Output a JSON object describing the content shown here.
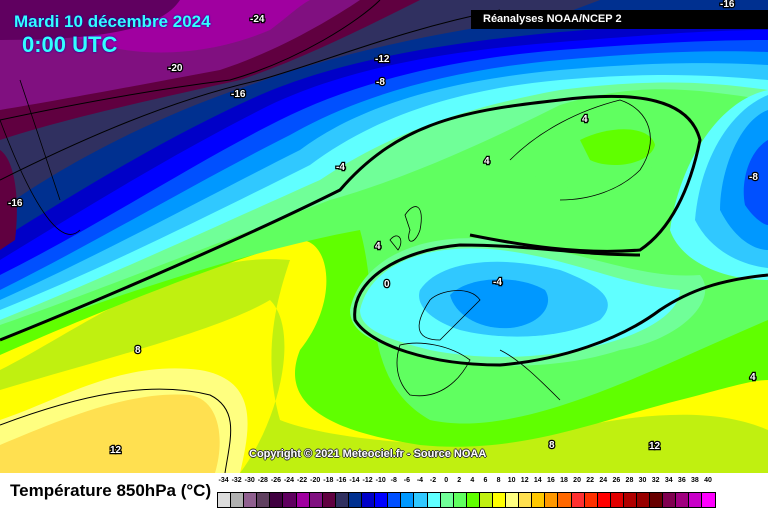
{
  "header": {
    "date": "Mardi 10 décembre 2024",
    "time": "0:00 UTC",
    "source": "Réanalyses NOAA/NCEP 2"
  },
  "copyright": "Copyright © 2021 Meteociel.fr - Source NOAA",
  "legend": {
    "title": "Température 850hPa (°C)",
    "ticks": [
      "-34",
      "-32",
      "-30",
      "-28",
      "-26",
      "-24",
      "-22",
      "-20",
      "-18",
      "-16",
      "-14",
      "-12",
      "-10",
      "-8",
      "-6",
      "-4",
      "-2",
      "0",
      "2",
      "4",
      "6",
      "8",
      "10",
      "12",
      "14",
      "16",
      "18",
      "20",
      "22",
      "24",
      "26",
      "28",
      "30",
      "32",
      "34",
      "36",
      "38",
      "40"
    ],
    "colors": [
      "#dcdcdc",
      "#b0b0b0",
      "#906090",
      "#604060",
      "#400040",
      "#600060",
      "#a000a0",
      "#801080",
      "#600040",
      "#303060",
      "#003090",
      "#0000c8",
      "#0000ff",
      "#0050ff",
      "#0098ff",
      "#30c8ff",
      "#60ffff",
      "#70ff98",
      "#60ff60",
      "#60ff00",
      "#c0f010",
      "#ffff00",
      "#ffff80",
      "#ffe050",
      "#ffc800",
      "#ff9800",
      "#ff6800",
      "#ff3030",
      "#ff3000",
      "#ff0000",
      "#e00000",
      "#b00000",
      "#980000",
      "#680000",
      "#800050",
      "#a00080",
      "#c800c8",
      "#ff00ff"
    ]
  },
  "contour_labels": [
    "-24",
    "-20",
    "-16",
    "-12",
    "-8",
    "-4",
    "4",
    "4",
    "4",
    "0",
    "-4",
    "8",
    "12",
    "8",
    "12",
    "4",
    "-8",
    "-16",
    "-16"
  ]
}
